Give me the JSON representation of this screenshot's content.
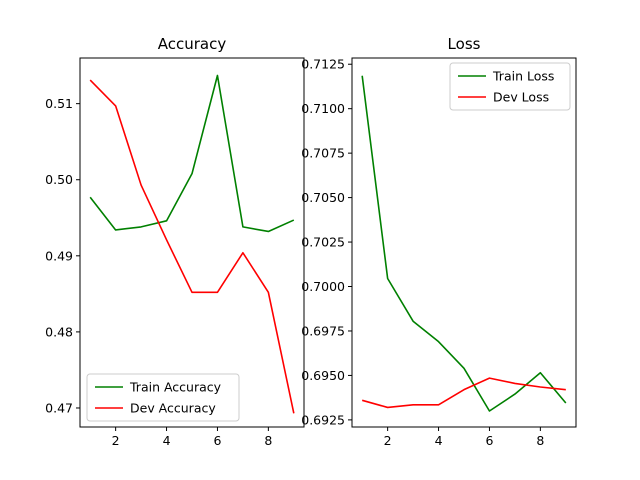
{
  "chart_data": [
    {
      "type": "line",
      "title": "Accuracy",
      "xlabel": "",
      "ylabel": "",
      "x": [
        1,
        2,
        3,
        4,
        5,
        6,
        7,
        8,
        9
      ],
      "xlim": [
        0.6,
        9.4
      ],
      "ylim": [
        0.4675,
        0.516
      ],
      "xticks": [
        2,
        4,
        6,
        8
      ],
      "yticks": [
        0.47,
        0.48,
        0.49,
        0.5,
        0.51
      ],
      "ytick_labels": [
        "0.47",
        "0.48",
        "0.49",
        "0.50",
        "0.51"
      ],
      "grid": false,
      "legend": "lower-left",
      "series": [
        {
          "name": "Train Accuracy",
          "color": "#008000",
          "values": [
            0.4977,
            0.4934,
            0.4938,
            0.4946,
            0.5008,
            0.5137,
            0.4938,
            0.4932,
            0.4947
          ]
        },
        {
          "name": "Dev Accuracy",
          "color": "#ff0000",
          "values": [
            0.5131,
            0.5097,
            0.4993,
            0.4921,
            0.4852,
            0.4852,
            0.4904,
            0.4852,
            0.4693
          ]
        }
      ]
    },
    {
      "type": "line",
      "title": "Loss",
      "xlabel": "",
      "ylabel": "",
      "x": [
        1,
        2,
        3,
        4,
        5,
        6,
        7,
        8,
        9
      ],
      "xlim": [
        0.6,
        9.4
      ],
      "ylim": [
        0.6921,
        0.71285
      ],
      "xticks": [
        2,
        4,
        6,
        8
      ],
      "yticks": [
        0.6925,
        0.695,
        0.6975,
        0.7,
        0.7025,
        0.705,
        0.7075,
        0.71,
        0.7125
      ],
      "ytick_labels": [
        "0.6925",
        "0.6950",
        "0.6975",
        "0.7000",
        "0.7025",
        "0.7050",
        "0.7075",
        "0.7100",
        "0.7125"
      ],
      "grid": false,
      "legend": "upper-right",
      "series": [
        {
          "name": "Train Loss",
          "color": "#008000",
          "values": [
            0.71185,
            0.70045,
            0.69805,
            0.6969,
            0.6954,
            0.693,
            0.69395,
            0.69515,
            0.69345
          ]
        },
        {
          "name": "Dev Loss",
          "color": "#ff0000",
          "values": [
            0.6936,
            0.6932,
            0.69335,
            0.69335,
            0.6942,
            0.69485,
            0.69455,
            0.69435,
            0.6942
          ]
        }
      ]
    }
  ]
}
